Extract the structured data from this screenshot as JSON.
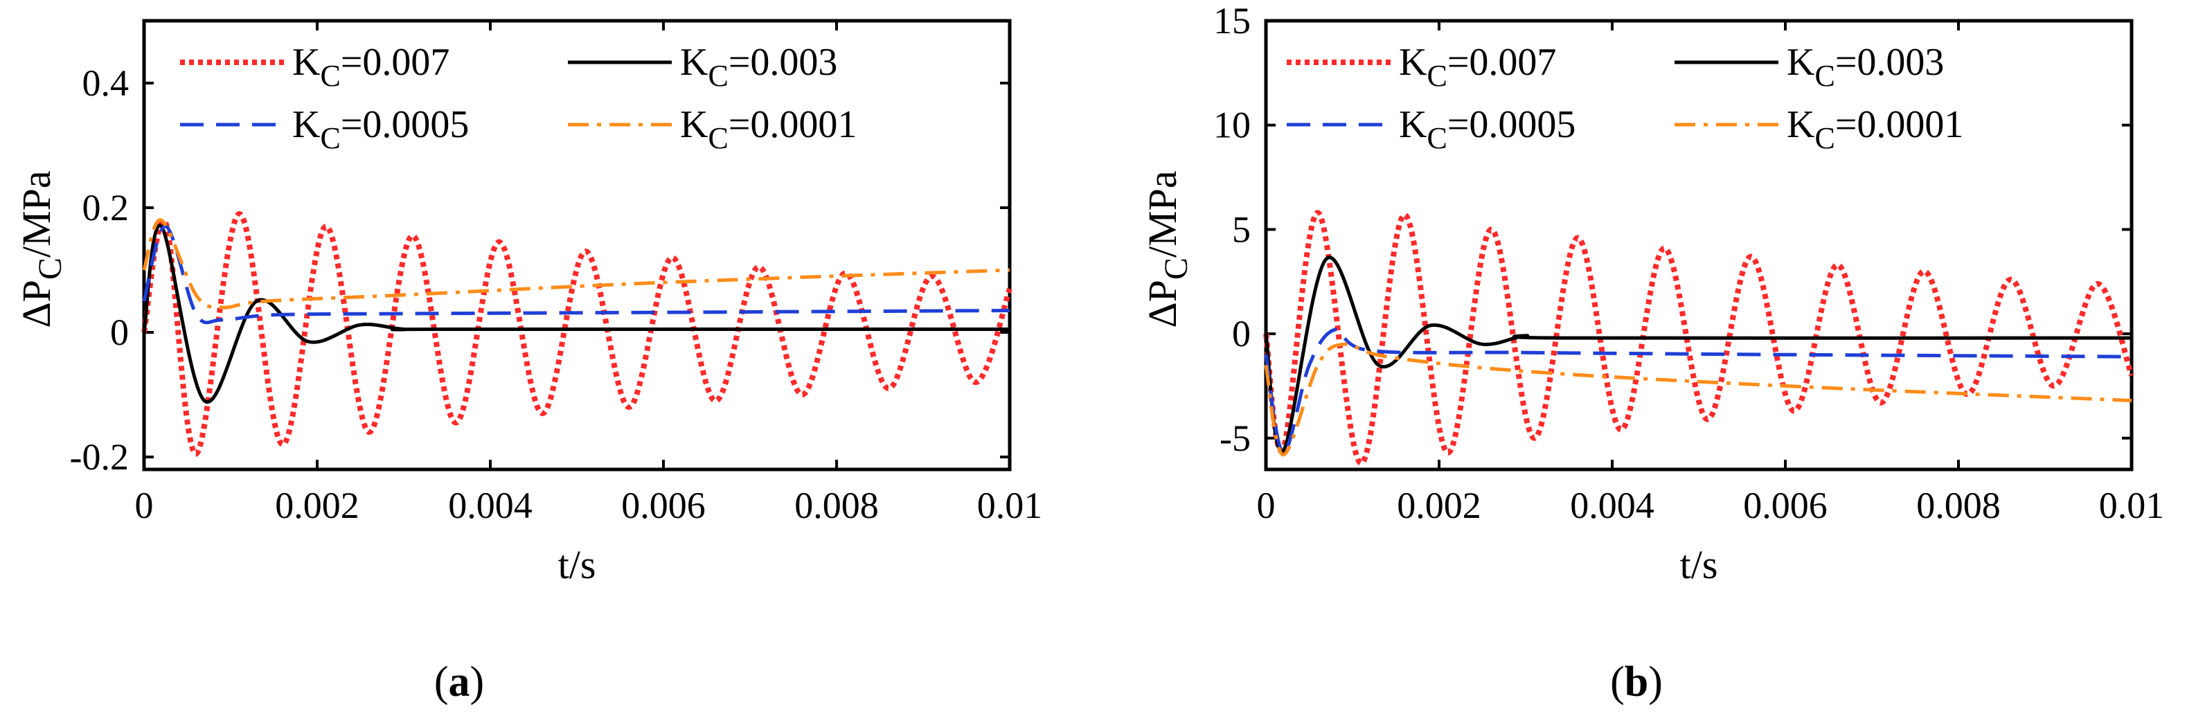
{
  "chart_data": [
    {
      "type": "line",
      "panel_label": "(a)",
      "xlabel": "t/s",
      "ylabel": "ΔP_C/MPa",
      "xlim": [
        0,
        0.01
      ],
      "ylim": [
        -0.22,
        0.5
      ],
      "x_ticks": [
        0,
        0.002,
        0.004,
        0.006,
        0.008,
        0.01
      ],
      "x_tick_labels": [
        "0",
        "0.002",
        "0.004",
        "0.006",
        "0.008",
        "0.01"
      ],
      "y_ticks": [
        -0.2,
        0,
        0.2,
        0.4
      ],
      "y_tick_labels": [
        "-0.2",
        "0",
        "0.2",
        "0.4"
      ],
      "legend": "top, two columns",
      "series": [
        {
          "name": "K_C=0.007",
          "color": "#ff2a2a",
          "style": "dotted",
          "points": [
            [
              0,
              0
            ],
            [
              0.00025,
              0.175
            ],
            [
              0.0006,
              -0.195
            ],
            [
              0.0011,
              0.19
            ],
            [
              0.0016,
              -0.18
            ],
            [
              0.0021,
              0.17
            ],
            [
              0.0026,
              -0.16
            ],
            [
              0.0031,
              0.155
            ],
            [
              0.0036,
              -0.145
            ],
            [
              0.0041,
              0.145
            ],
            [
              0.0046,
              -0.13
            ],
            [
              0.0051,
              0.13
            ],
            [
              0.0056,
              -0.12
            ],
            [
              0.0061,
              0.12
            ],
            [
              0.0066,
              -0.11
            ],
            [
              0.0071,
              0.105
            ],
            [
              0.0076,
              -0.1
            ],
            [
              0.0081,
              0.095
            ],
            [
              0.0086,
              -0.09
            ],
            [
              0.0091,
              0.09
            ],
            [
              0.0096,
              -0.08
            ],
            [
              0.01,
              0.07
            ]
          ]
        },
        {
          "name": "K_C=0.003",
          "color": "#000000",
          "style": "solid",
          "points": [
            [
              0,
              0
            ],
            [
              0.0002,
              0.17
            ],
            [
              0.0007,
              -0.11
            ],
            [
              0.0013,
              0.05
            ],
            [
              0.0019,
              -0.015
            ],
            [
              0.0025,
              0.012
            ],
            [
              0.003,
              0.005
            ],
            [
              0.0035,
              0.005
            ],
            [
              0.01,
              0.005
            ]
          ]
        },
        {
          "name": "K_C=0.0005",
          "color": "#1f3fd6",
          "style": "dashed",
          "points": [
            [
              0,
              0.05
            ],
            [
              0.00025,
              0.17
            ],
            [
              0.0006,
              0.03
            ],
            [
              0.0009,
              0.02
            ],
            [
              0.0015,
              0.028
            ],
            [
              0.003,
              0.03
            ],
            [
              0.006,
              0.032
            ],
            [
              0.01,
              0.035
            ]
          ]
        },
        {
          "name": "K_C=0.0001",
          "color": "#ff8c1a",
          "style": "dashdot",
          "points": [
            [
              0,
              0.1
            ],
            [
              0.0002,
              0.18
            ],
            [
              0.0006,
              0.06
            ],
            [
              0.0009,
              0.04
            ],
            [
              0.0014,
              0.05
            ],
            [
              0.003,
              0.06
            ],
            [
              0.006,
              0.08
            ],
            [
              0.01,
              0.1
            ]
          ]
        }
      ]
    },
    {
      "type": "line",
      "panel_label": "(b)",
      "xlabel": "t/s",
      "ylabel": "ΔP_C/MPa",
      "xlim": [
        0,
        0.01
      ],
      "ylim": [
        -6.5,
        15
      ],
      "x_ticks": [
        0,
        0.002,
        0.004,
        0.006,
        0.008,
        0.01
      ],
      "x_tick_labels": [
        "0",
        "0.002",
        "0.004",
        "0.006",
        "0.008",
        "0.01"
      ],
      "y_ticks": [
        -5,
        0,
        5,
        10,
        15
      ],
      "y_tick_labels": [
        "-5",
        "0",
        "5",
        "10",
        "15"
      ],
      "legend": "top, two columns",
      "series": [
        {
          "name": "K_C=0.007",
          "color": "#ff2a2a",
          "style": "dotted",
          "points": [
            [
              0,
              0
            ],
            [
              0.0002,
              -5.5
            ],
            [
              0.0006,
              5.8
            ],
            [
              0.0011,
              -6.2
            ],
            [
              0.0016,
              5.7
            ],
            [
              0.0021,
              -5.7
            ],
            [
              0.0026,
              5.0
            ],
            [
              0.0031,
              -5.0
            ],
            [
              0.0036,
              4.6
            ],
            [
              0.0041,
              -4.6
            ],
            [
              0.0046,
              4.1
            ],
            [
              0.0051,
              -4.1
            ],
            [
              0.0056,
              3.7
            ],
            [
              0.0061,
              -3.7
            ],
            [
              0.0066,
              3.3
            ],
            [
              0.0071,
              -3.3
            ],
            [
              0.0076,
              3.0
            ],
            [
              0.0081,
              -2.9
            ],
            [
              0.0086,
              2.6
            ],
            [
              0.0091,
              -2.5
            ],
            [
              0.0096,
              2.4
            ],
            [
              0.01,
              -2.0
            ]
          ]
        },
        {
          "name": "K_C=0.003",
          "color": "#000000",
          "style": "solid",
          "points": [
            [
              0,
              0
            ],
            [
              0.0002,
              -5.6
            ],
            [
              0.0007,
              3.6
            ],
            [
              0.0013,
              -1.5
            ],
            [
              0.0019,
              0.4
            ],
            [
              0.0025,
              -0.5
            ],
            [
              0.003,
              -0.1
            ],
            [
              0.0035,
              -0.2
            ],
            [
              0.01,
              -0.2
            ]
          ]
        },
        {
          "name": "K_C=0.0005",
          "color": "#1f3fd6",
          "style": "dashed",
          "points": [
            [
              0,
              -1.0
            ],
            [
              0.0002,
              -5.7
            ],
            [
              0.0005,
              -1.5
            ],
            [
              0.0008,
              0.2
            ],
            [
              0.0012,
              -0.8
            ],
            [
              0.003,
              -0.9
            ],
            [
              0.006,
              -1.0
            ],
            [
              0.01,
              -1.1
            ]
          ]
        },
        {
          "name": "K_C=0.0001",
          "color": "#ff8c1a",
          "style": "dashdot",
          "points": [
            [
              0,
              -1.5
            ],
            [
              0.0002,
              -5.8
            ],
            [
              0.0006,
              -1.5
            ],
            [
              0.0009,
              -0.5
            ],
            [
              0.0014,
              -1.1
            ],
            [
              0.003,
              -1.8
            ],
            [
              0.006,
              -2.5
            ],
            [
              0.01,
              -3.2
            ]
          ]
        }
      ]
    }
  ]
}
